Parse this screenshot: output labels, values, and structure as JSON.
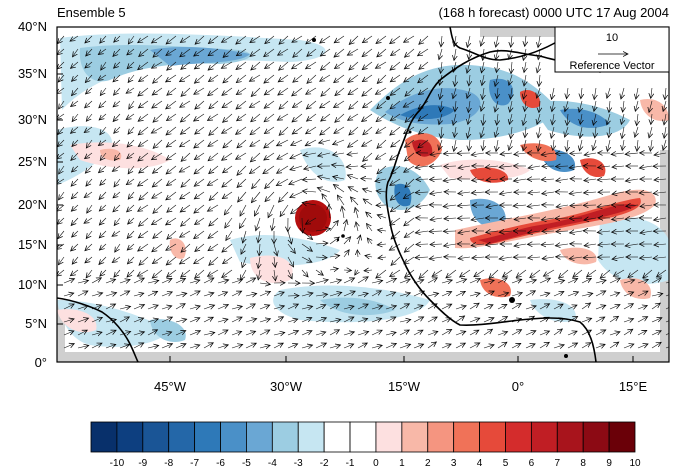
{
  "title_left": "Ensemble 5",
  "title_right": "(168 h forecast) 0000 UTC 17 Aug 2004",
  "lat_labels": [
    "40°N",
    "35°N",
    "30°N",
    "25°N",
    "20°N",
    "15°N",
    "10°N",
    "5°N",
    "0°"
  ],
  "lon_labels": [
    "45°W",
    "30°W",
    "15°W",
    "0°",
    "15°E"
  ],
  "reference_vector": {
    "value": "10",
    "label": "Reference Vector"
  },
  "colorbar": {
    "labels": [
      "-10",
      "-9",
      "-8",
      "-7",
      "-6",
      "-5",
      "-4",
      "-3",
      "-2",
      "-1",
      "0",
      "1",
      "2",
      "3",
      "4",
      "5",
      "6",
      "7",
      "8",
      "9",
      "10"
    ],
    "colors": [
      "#08306b",
      "#0d3f80",
      "#1a5596",
      "#2467a8",
      "#2e79b8",
      "#4a90c8",
      "#6aa7d4",
      "#9ccde2",
      "#c6e6f2",
      "#ffffff",
      "#ffffff",
      "#fde0e0",
      "#f8b8a8",
      "#f59580",
      "#f07258",
      "#e64a3a",
      "#d42c2c",
      "#c01e24",
      "#a8141c",
      "#8c0a14",
      "#6a0008"
    ]
  },
  "colors": {
    "land": "#ffffff",
    "coast": "#000000",
    "vortex": "#b50f0f",
    "grey_mask": "#cfcfcf"
  }
}
